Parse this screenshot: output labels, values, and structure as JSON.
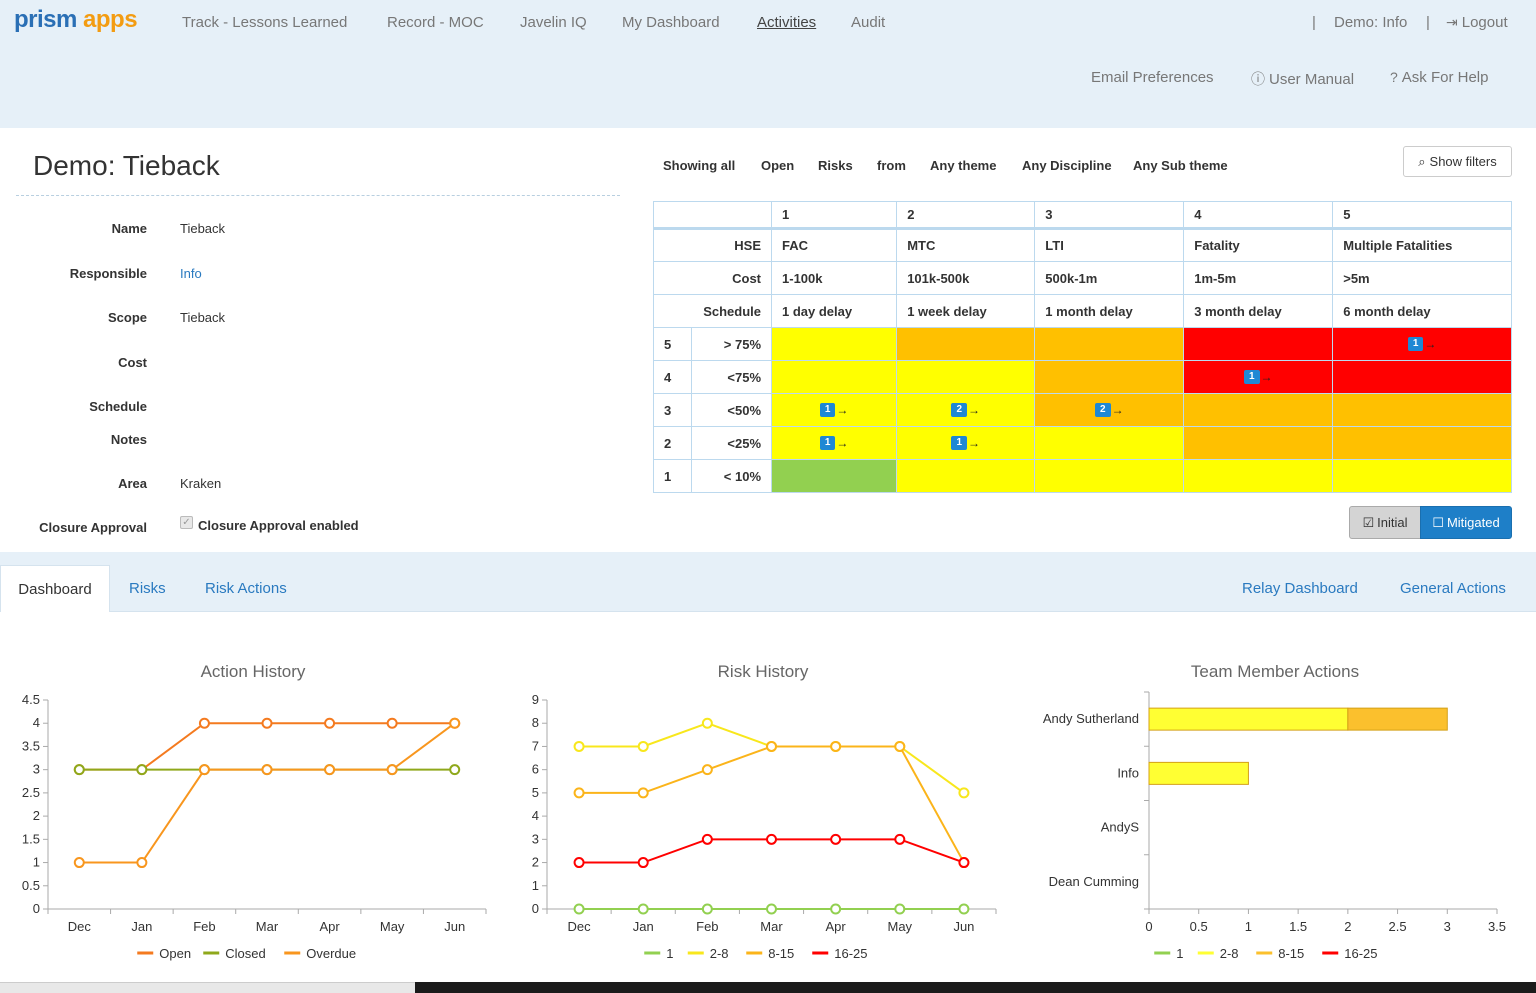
{
  "nav": {
    "logo_part1": "prism",
    "logo_part2": "apps",
    "items": [
      "Track - Lessons Learned",
      "Record - MOC",
      "Javelin IQ",
      "My Dashboard",
      "Activities",
      "Audit"
    ],
    "user": "Demo: Info",
    "logout": "Logout",
    "email_prefs": "Email Preferences",
    "user_manual": "User Manual",
    "ask_help": "Ask For Help"
  },
  "detail": {
    "title": "Demo: Tieback",
    "fields": [
      {
        "label": "Name",
        "value": "Tieback"
      },
      {
        "label": "Responsible",
        "value": "Info"
      },
      {
        "label": "Scope",
        "value": "Tieback"
      },
      {
        "label": "Cost",
        "value": ""
      },
      {
        "label": "Schedule",
        "value": ""
      },
      {
        "label": "Notes",
        "value": ""
      },
      {
        "label": "Area",
        "value": "Kraken"
      },
      {
        "label": "Closure Approval",
        "value": "Closure Approval enabled"
      }
    ]
  },
  "filters": {
    "items": [
      "Showing all",
      "Open",
      "Risks",
      "from",
      "Any theme",
      "Any Discipline",
      "Any Sub theme"
    ],
    "show_filters": "Show filters"
  },
  "matrix": {
    "consequence_numbers": [
      "1",
      "2",
      "3",
      "4",
      "5"
    ],
    "rows": [
      {
        "label": "HSE",
        "values": [
          "FAC",
          "MTC",
          "LTI",
          "Fatality",
          "Multiple Fatalities"
        ]
      },
      {
        "label": "Cost",
        "values": [
          "1-100k",
          "101k-500k",
          "500k-1m",
          "1m-5m",
          ">5m"
        ]
      },
      {
        "label": "Schedule",
        "values": [
          "1 day delay",
          "1 week delay",
          "1 month delay",
          "3 month delay",
          "6 month delay"
        ]
      }
    ],
    "likelihood": [
      {
        "num": "5",
        "label": "> 75%",
        "cells": [
          {
            "color": "#ffff00",
            "badge": ""
          },
          {
            "color": "#ffc000",
            "badge": ""
          },
          {
            "color": "#ffc000",
            "badge": ""
          },
          {
            "color": "#ff0000",
            "badge": ""
          },
          {
            "color": "#ff0000",
            "badge": "1"
          }
        ]
      },
      {
        "num": "4",
        "label": "<75%",
        "cells": [
          {
            "color": "#ffff00",
            "badge": ""
          },
          {
            "color": "#ffff00",
            "badge": ""
          },
          {
            "color": "#ffc000",
            "badge": ""
          },
          {
            "color": "#ff0000",
            "badge": "1"
          },
          {
            "color": "#ff0000",
            "badge": ""
          }
        ]
      },
      {
        "num": "3",
        "label": "<50%",
        "cells": [
          {
            "color": "#ffff00",
            "badge": "1"
          },
          {
            "color": "#ffff00",
            "badge": "2"
          },
          {
            "color": "#ffc000",
            "badge": "2"
          },
          {
            "color": "#ffc000",
            "badge": ""
          },
          {
            "color": "#ffc000",
            "badge": ""
          }
        ]
      },
      {
        "num": "2",
        "label": "<25%",
        "cells": [
          {
            "color": "#ffff00",
            "badge": "1"
          },
          {
            "color": "#ffff00",
            "badge": "1"
          },
          {
            "color": "#ffff00",
            "badge": ""
          },
          {
            "color": "#ffc000",
            "badge": ""
          },
          {
            "color": "#ffc000",
            "badge": ""
          }
        ]
      },
      {
        "num": "1",
        "label": "< 10%",
        "cells": [
          {
            "color": "#92d050",
            "badge": ""
          },
          {
            "color": "#ffff00",
            "badge": ""
          },
          {
            "color": "#ffff00",
            "badge": ""
          },
          {
            "color": "#ffff00",
            "badge": ""
          },
          {
            "color": "#ffff00",
            "badge": ""
          }
        ]
      }
    ],
    "arrow_glyph": "→",
    "btn_initial": "Initial",
    "btn_mitigated": "Mitigated"
  },
  "tabs": {
    "dashboard": "Dashboard",
    "risks": "Risks",
    "risk_actions": "Risk Actions",
    "relay_dashboard": "Relay Dashboard",
    "general_actions": "General Actions"
  },
  "chart_data": [
    {
      "type": "line",
      "title": "Action History",
      "categories": [
        "Dec",
        "Jan",
        "Feb",
        "Mar",
        "Apr",
        "May",
        "Jun"
      ],
      "ylim": [
        0,
        4.5
      ],
      "yticks": [
        "0",
        "0.5",
        "1",
        "1.5",
        "2",
        "2.5",
        "3",
        "3.5",
        "4",
        "4.5"
      ],
      "series": [
        {
          "name": "Open",
          "color": "#f47a1f",
          "values": [
            3,
            3,
            4,
            4,
            4,
            4,
            4
          ]
        },
        {
          "name": "Closed",
          "color": "#8fa81b",
          "values": [
            3,
            3,
            3,
            3,
            3,
            3,
            3
          ]
        },
        {
          "name": "Overdue",
          "color": "#f8961e",
          "values": [
            1,
            1,
            3,
            3,
            3,
            3,
            4
          ]
        }
      ],
      "legend": "bottom"
    },
    {
      "type": "line",
      "title": "Risk History",
      "categories": [
        "Dec",
        "Jan",
        "Feb",
        "Mar",
        "Apr",
        "May",
        "Jun"
      ],
      "ylim": [
        0,
        9
      ],
      "yticks": [
        "0",
        "1",
        "2",
        "3",
        "4",
        "5",
        "6",
        "7",
        "8",
        "9"
      ],
      "series": [
        {
          "name": "1",
          "color": "#92d050",
          "values": [
            0,
            0,
            0,
            0,
            0,
            0,
            0
          ]
        },
        {
          "name": "2-8",
          "color": "#f8e71c",
          "values": [
            7,
            7,
            8,
            7,
            7,
            7,
            5
          ]
        },
        {
          "name": "8-15",
          "color": "#fbb41a",
          "values": [
            5,
            5,
            6,
            7,
            7,
            7,
            2
          ]
        },
        {
          "name": "16-25",
          "color": "#ff0000",
          "values": [
            2,
            2,
            3,
            3,
            3,
            3,
            2
          ]
        }
      ],
      "legend": "bottom"
    },
    {
      "type": "bar",
      "orientation": "horizontal",
      "stacked": true,
      "title": "Team Member Actions",
      "categories": [
        "Andy Sutherland",
        "Info",
        "AndyS",
        "Dean Cumming"
      ],
      "xlim": [
        0,
        3.5
      ],
      "xticks": [
        "0",
        "0.5",
        "1",
        "1.5",
        "2",
        "2.5",
        "3",
        "3.5"
      ],
      "series": [
        {
          "name": "1",
          "color": "#92d050",
          "values": [
            0,
            0,
            0,
            0
          ]
        },
        {
          "name": "2-8",
          "color": "#ffff33",
          "values": [
            2,
            1,
            0,
            0
          ]
        },
        {
          "name": "8-15",
          "color": "#fbc02d",
          "values": [
            1,
            0,
            0,
            0
          ]
        },
        {
          "name": "16-25",
          "color": "#ff0000",
          "values": [
            0,
            0,
            0,
            0
          ]
        }
      ],
      "legend": "bottom"
    }
  ]
}
